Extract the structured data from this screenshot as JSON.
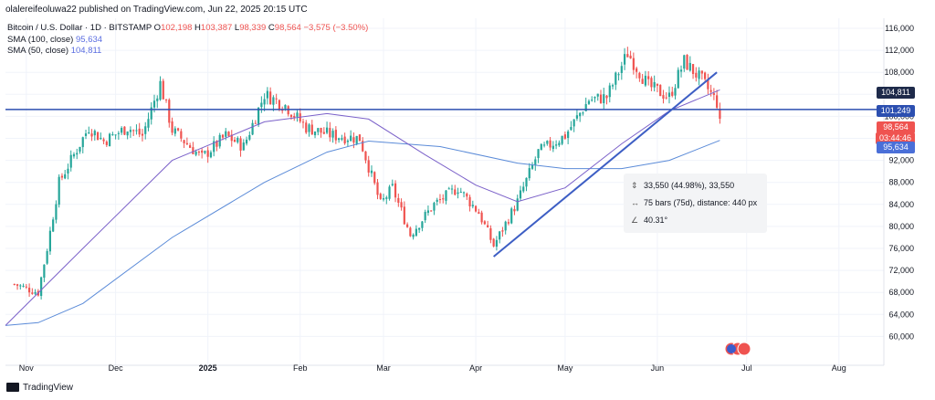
{
  "header": {
    "text": "olalereifeoluwa22 published on TradingView.com, Jun 22, 2025 20:15 UTC"
  },
  "legend": {
    "symbol": "Bitcoin / U.S. Dollar · 1D · BITSTAMP",
    "open_k": "O",
    "open": "102,198",
    "high_k": "H",
    "high": "103,387",
    "low_k": "L",
    "low": "98,339",
    "close_k": "C",
    "close": "98,564",
    "change": "−3,575 (−3.50%)",
    "sma100_label": "SMA (100, close)",
    "sma100_value": "95,634",
    "sma50_label": "SMA (50, close)",
    "sma50_value": "104,811"
  },
  "price_tags": {
    "sma50": "104,811",
    "level": "101,249",
    "close": "98,564",
    "countdown": "03:44:46",
    "sma100": "95,634"
  },
  "measure": {
    "price_range": "33,550 (44.98%), 33,550",
    "bars": "75 bars (75d), distance: 440 px",
    "angle": "40.31°"
  },
  "footer": {
    "brand": "TradingView"
  },
  "colors": {
    "up": "#26a69a",
    "down": "#ef5350",
    "sma100": "#5b8bd8",
    "sma50": "#7b61c9",
    "level_line": "#2c4fb0",
    "trend_line": "#3d5ec4"
  },
  "chart_data": {
    "type": "candlestick",
    "y_axis_ticks": [
      "116,000",
      "112,000",
      "108,000",
      "104,000",
      "100,000",
      "96,000",
      "92,000",
      "88,000",
      "84,000",
      "80,000",
      "76,000",
      "72,000",
      "68,000",
      "64,000",
      "60,000"
    ],
    "ylim": [
      58000,
      118000
    ],
    "x_axis_ticks": [
      "Nov",
      "Dec",
      "2025",
      "Feb",
      "Mar",
      "Apr",
      "May",
      "Jun",
      "Jul",
      "Aug"
    ],
    "horizontal_level": 101249,
    "trendline": {
      "start": [
        "2025-04-07",
        74500
      ],
      "end": [
        "2025-06-21",
        108000
      ]
    },
    "close_series": [
      [
        "2024-10-28",
        69500
      ],
      [
        "2024-11-05",
        68000
      ],
      [
        "2024-11-08",
        76000
      ],
      [
        "2024-11-12",
        88000
      ],
      [
        "2024-11-22",
        98000
      ],
      [
        "2024-11-27",
        95500
      ],
      [
        "2024-12-05",
        98000
      ],
      [
        "2024-12-10",
        96500
      ],
      [
        "2024-12-16",
        106000
      ],
      [
        "2024-12-20",
        97500
      ],
      [
        "2024-12-30",
        92500
      ],
      [
        "2025-01-07",
        96500
      ],
      [
        "2025-01-13",
        94500
      ],
      [
        "2025-01-20",
        104000
      ],
      [
        "2025-01-27",
        102000
      ],
      [
        "2025-02-03",
        98000
      ],
      [
        "2025-02-12",
        96500
      ],
      [
        "2025-02-21",
        96000
      ],
      [
        "2025-02-28",
        84000
      ],
      [
        "2025-03-04",
        87000
      ],
      [
        "2025-03-10",
        78500
      ],
      [
        "2025-03-18",
        84000
      ],
      [
        "2025-03-26",
        87000
      ],
      [
        "2025-04-02",
        82500
      ],
      [
        "2025-04-07",
        76500
      ],
      [
        "2025-04-15",
        84500
      ],
      [
        "2025-04-22",
        93500
      ],
      [
        "2025-05-01",
        96500
      ],
      [
        "2025-05-09",
        103000
      ],
      [
        "2025-05-15",
        103500
      ],
      [
        "2025-05-22",
        111500
      ],
      [
        "2025-05-29",
        105500
      ],
      [
        "2025-06-05",
        103500
      ],
      [
        "2025-06-10",
        110000
      ],
      [
        "2025-06-16",
        106500
      ],
      [
        "2025-06-21",
        102500
      ],
      [
        "2025-06-22",
        98564
      ]
    ],
    "sma50": [
      [
        "2024-10-25",
        62000
      ],
      [
        "2024-11-20",
        76000
      ],
      [
        "2024-12-20",
        92000
      ],
      [
        "2025-01-20",
        99000
      ],
      [
        "2025-02-10",
        100500
      ],
      [
        "2025-02-24",
        99500
      ],
      [
        "2025-03-15",
        93000
      ],
      [
        "2025-04-01",
        87500
      ],
      [
        "2025-04-15",
        84500
      ],
      [
        "2025-05-01",
        87000
      ],
      [
        "2025-05-20",
        95000
      ],
      [
        "2025-06-05",
        101000
      ],
      [
        "2025-06-22",
        104811
      ]
    ],
    "sma100": [
      [
        "2024-10-25",
        62000
      ],
      [
        "2024-11-05",
        62500
      ],
      [
        "2024-11-20",
        66000
      ],
      [
        "2024-12-20",
        78000
      ],
      [
        "2025-01-20",
        88000
      ],
      [
        "2025-02-10",
        93500
      ],
      [
        "2025-02-24",
        95500
      ],
      [
        "2025-03-20",
        94500
      ],
      [
        "2025-04-15",
        91500
      ],
      [
        "2025-05-01",
        90500
      ],
      [
        "2025-05-20",
        90500
      ],
      [
        "2025-06-05",
        92000
      ],
      [
        "2025-06-22",
        95634
      ]
    ]
  }
}
